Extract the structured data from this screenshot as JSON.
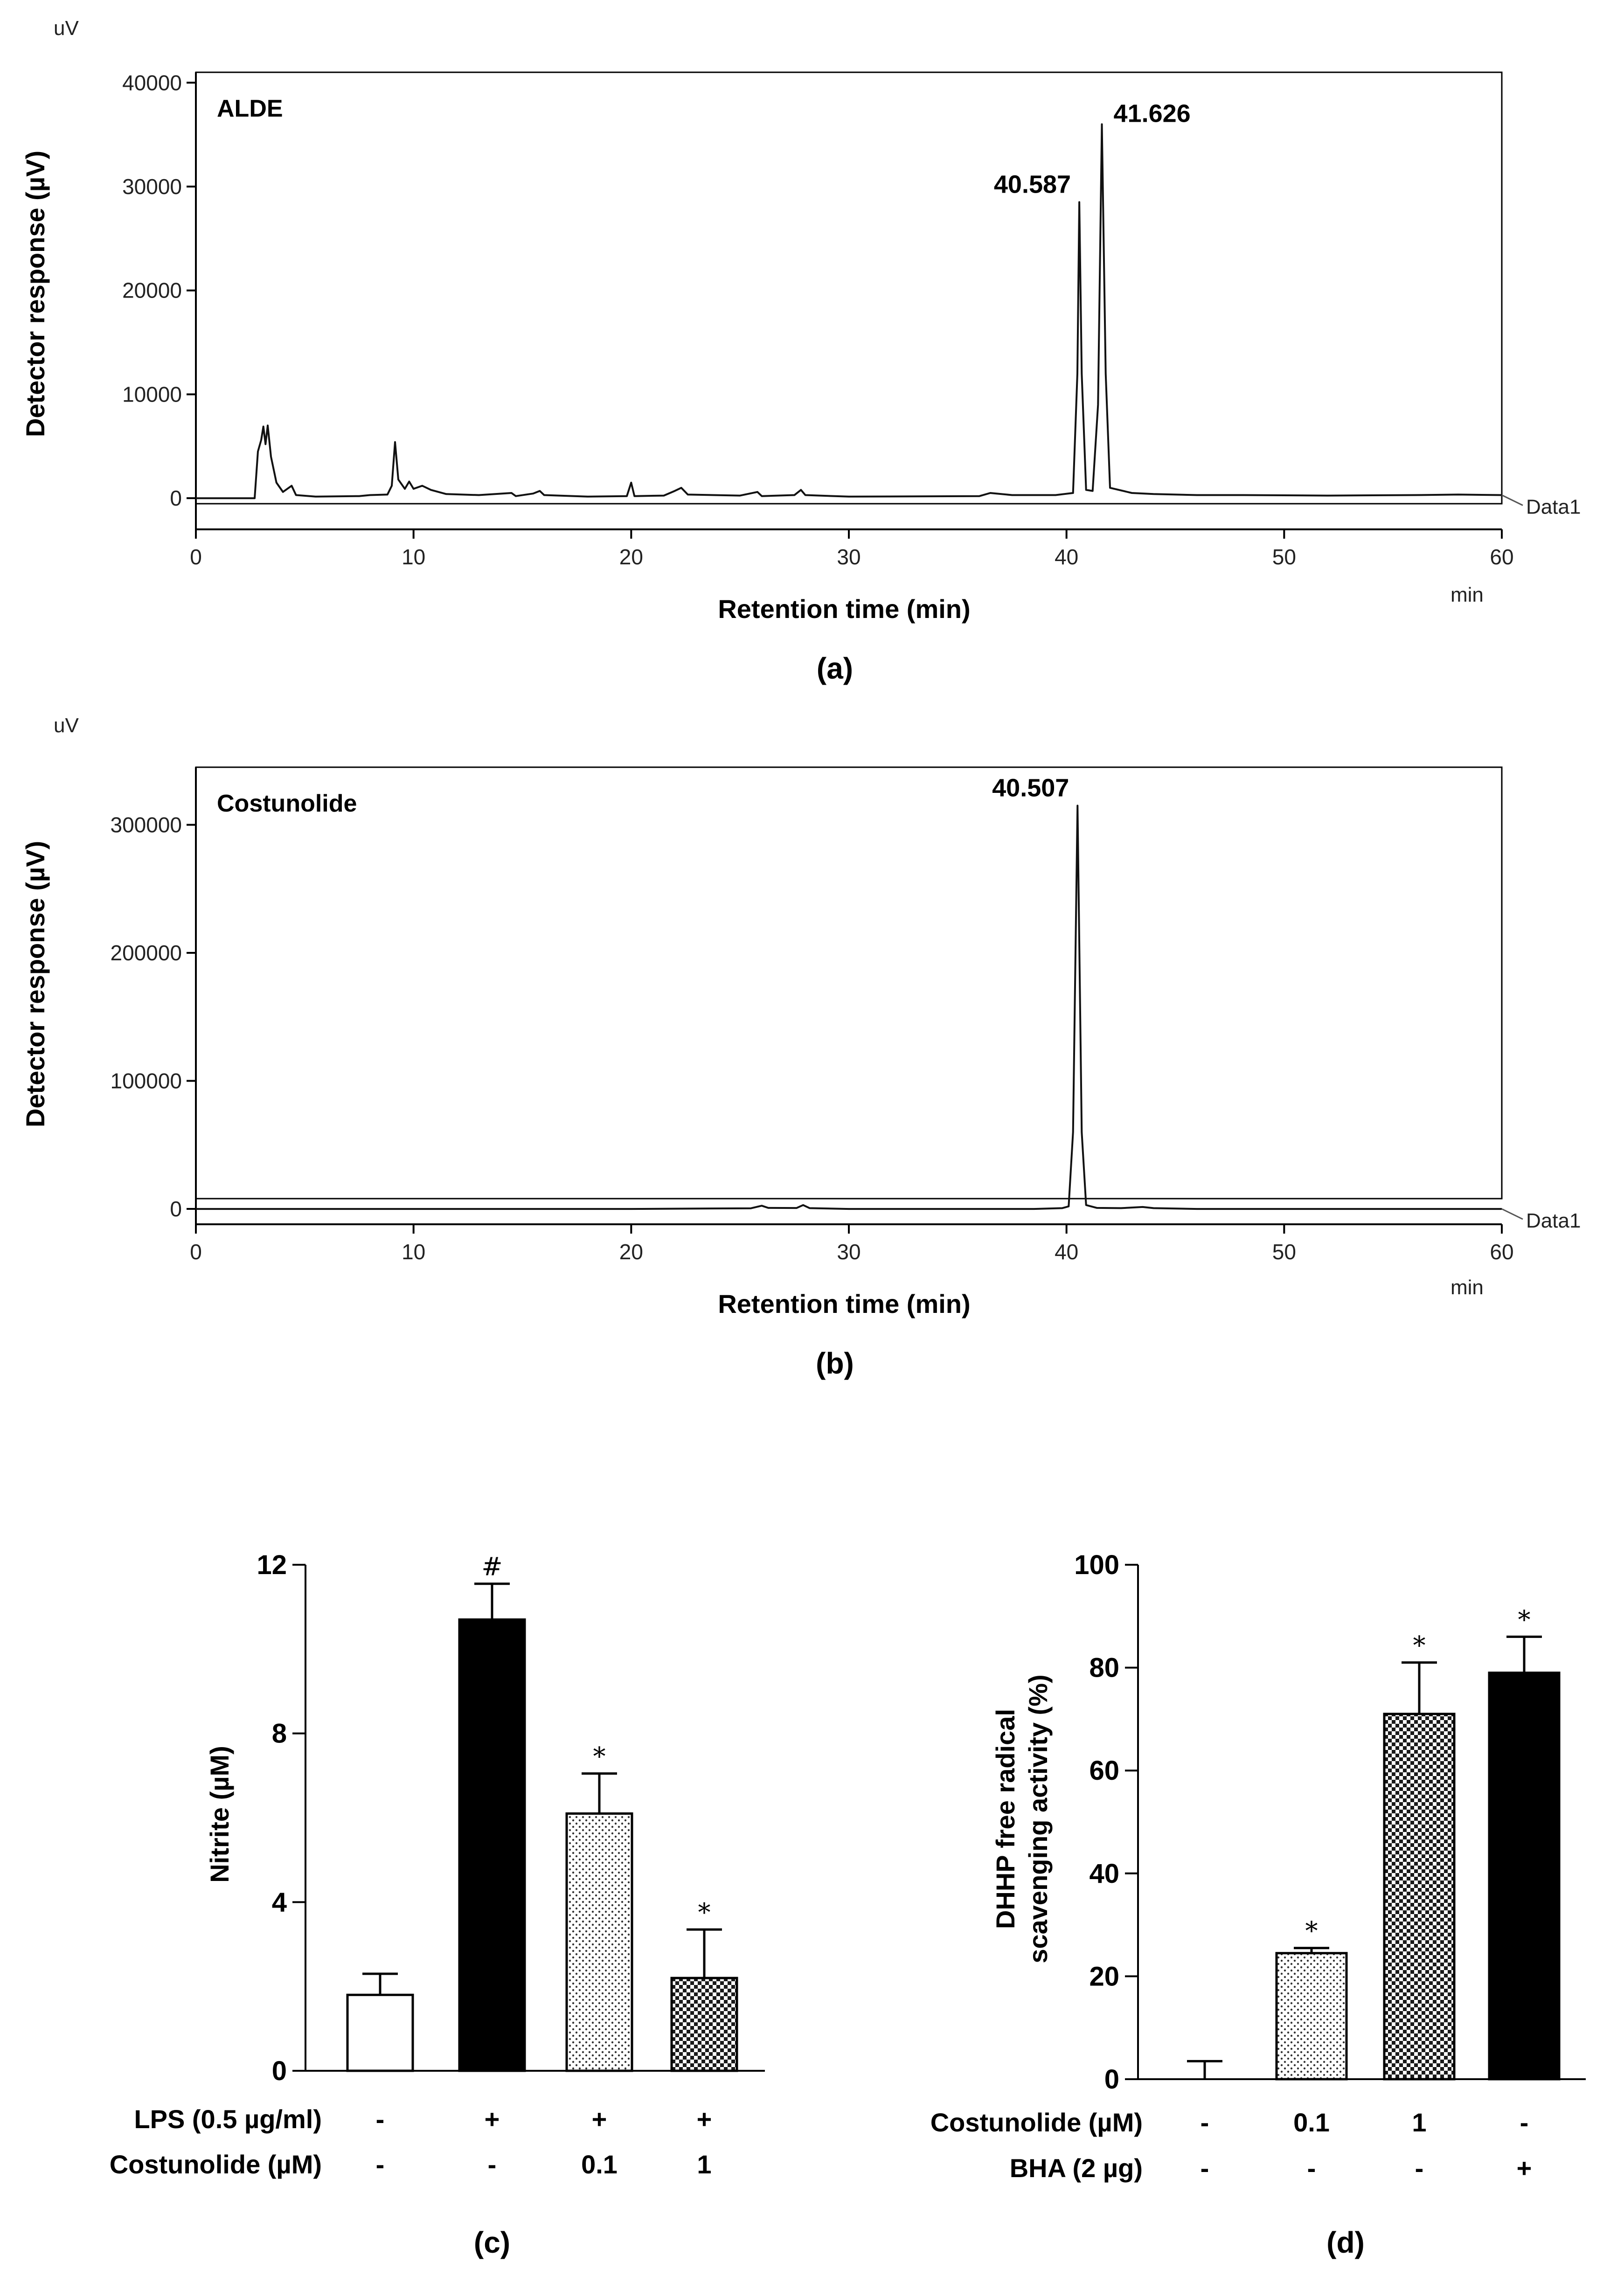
{
  "chart_data": [
    {
      "id": "a",
      "type": "line",
      "subtitle": "(a)",
      "unit_label": "uV",
      "name": "ALDE",
      "xlabel": "Retention time (min)",
      "ylabel": "Detector response (µV)",
      "x_unit": "min",
      "xlim": [
        0,
        60
      ],
      "ylim": [
        -3000,
        41000
      ],
      "xticks": [
        0,
        10,
        20,
        30,
        40,
        50,
        60
      ],
      "yticks": [
        0,
        10000,
        20000,
        30000,
        40000
      ],
      "series_label": "Data1",
      "peaks": [
        {
          "x": 40.587,
          "y": 28500,
          "label": "40.587"
        },
        {
          "x": 41.626,
          "y": 36000,
          "label": "41.626"
        }
      ],
      "trace": [
        [
          0,
          0
        ],
        [
          2.7,
          0
        ],
        [
          2.85,
          4500
        ],
        [
          3.0,
          5600
        ],
        [
          3.1,
          6900
        ],
        [
          3.2,
          5200
        ],
        [
          3.3,
          7000
        ],
        [
          3.45,
          4000
        ],
        [
          3.7,
          1500
        ],
        [
          4.0,
          600
        ],
        [
          4.4,
          1200
        ],
        [
          4.6,
          300
        ],
        [
          5.5,
          150
        ],
        [
          7.5,
          200
        ],
        [
          8.0,
          300
        ],
        [
          8.8,
          350
        ],
        [
          9.0,
          1200
        ],
        [
          9.15,
          5400
        ],
        [
          9.3,
          1800
        ],
        [
          9.6,
          900
        ],
        [
          9.8,
          1600
        ],
        [
          10.0,
          900
        ],
        [
          10.4,
          1200
        ],
        [
          10.8,
          800
        ],
        [
          11.5,
          400
        ],
        [
          13.0,
          300
        ],
        [
          14.5,
          500
        ],
        [
          14.7,
          200
        ],
        [
          15.5,
          450
        ],
        [
          15.8,
          700
        ],
        [
          16.0,
          300
        ],
        [
          18.0,
          150
        ],
        [
          19.8,
          200
        ],
        [
          20.0,
          1500
        ],
        [
          20.15,
          200
        ],
        [
          21.5,
          250
        ],
        [
          22.0,
          700
        ],
        [
          22.3,
          1000
        ],
        [
          22.6,
          350
        ],
        [
          25.0,
          250
        ],
        [
          25.8,
          600
        ],
        [
          26.0,
          200
        ],
        [
          27.5,
          300
        ],
        [
          27.8,
          800
        ],
        [
          28.0,
          300
        ],
        [
          30.0,
          150
        ],
        [
          36.0,
          200
        ],
        [
          36.5,
          500
        ],
        [
          37.5,
          300
        ],
        [
          39.5,
          300
        ],
        [
          40.3,
          500
        ],
        [
          40.5,
          12000
        ],
        [
          40.587,
          28500
        ],
        [
          40.7,
          12000
        ],
        [
          40.9,
          800
        ],
        [
          41.2,
          700
        ],
        [
          41.45,
          9000
        ],
        [
          41.626,
          36000
        ],
        [
          41.8,
          12000
        ],
        [
          42.0,
          1000
        ],
        [
          43.0,
          500
        ],
        [
          44.0,
          400
        ],
        [
          46.0,
          300
        ],
        [
          48.0,
          300
        ],
        [
          52.0,
          250
        ],
        [
          56.0,
          300
        ],
        [
          58.0,
          350
        ],
        [
          60.0,
          300
        ]
      ]
    },
    {
      "id": "b",
      "type": "line",
      "subtitle": "(b)",
      "unit_label": "uV",
      "name": "Costunolide",
      "xlabel": "Retention time (min)",
      "ylabel": "Detector response (µV)",
      "x_unit": "min",
      "xlim": [
        0,
        60
      ],
      "ylim": [
        -12000,
        345000
      ],
      "xticks": [
        0,
        10,
        20,
        30,
        40,
        50,
        60
      ],
      "yticks": [
        0,
        100000,
        200000,
        300000
      ],
      "series_label": "Data1",
      "peaks": [
        {
          "x": 40.507,
          "y": 315000,
          "label": "40.507"
        }
      ],
      "trace": [
        [
          0,
          0
        ],
        [
          10,
          0
        ],
        [
          20,
          0
        ],
        [
          25.5,
          500
        ],
        [
          26.0,
          2500
        ],
        [
          26.3,
          800
        ],
        [
          27.6,
          700
        ],
        [
          27.9,
          3000
        ],
        [
          28.2,
          600
        ],
        [
          30,
          0
        ],
        [
          38.5,
          0
        ],
        [
          39.8,
          600
        ],
        [
          40.1,
          2000
        ],
        [
          40.3,
          60000
        ],
        [
          40.507,
          315000
        ],
        [
          40.7,
          60000
        ],
        [
          40.9,
          3000
        ],
        [
          41.4,
          800
        ],
        [
          42.5,
          600
        ],
        [
          43.5,
          1500
        ],
        [
          44.0,
          600
        ],
        [
          46,
          0
        ],
        [
          60,
          0
        ]
      ]
    },
    {
      "id": "c",
      "type": "bar",
      "subtitle": "(c)",
      "ylabel": "Nitrite (µM)",
      "ylim": [
        0,
        12
      ],
      "yticks": [
        0,
        4,
        8,
        12
      ],
      "values": [
        1.8,
        10.7,
        6.1,
        2.2
      ],
      "errors": [
        0.5,
        0.85,
        0.95,
        1.15
      ],
      "marks": [
        "",
        "#",
        "*",
        "*"
      ],
      "fills": [
        "white",
        "black",
        "dots",
        "check"
      ],
      "group_rows": [
        {
          "label": "LPS (0.5 µg/ml)",
          "values": [
            "-",
            "+",
            "+",
            "+"
          ]
        },
        {
          "label": "Costunolide (µM)",
          "values": [
            "-",
            "-",
            "0.1",
            "1"
          ]
        }
      ]
    },
    {
      "id": "d",
      "type": "bar",
      "subtitle": "(d)",
      "ylabel_lines": [
        "DHHP  free radical",
        "scavenging activity (%)"
      ],
      "ylim": [
        0,
        100
      ],
      "yticks": [
        0,
        20,
        40,
        60,
        80,
        100
      ],
      "values": [
        0,
        24.5,
        71,
        79
      ],
      "errors": [
        3.5,
        1.0,
        10.0,
        7.0
      ],
      "marks": [
        "",
        "*",
        "*",
        "*"
      ],
      "fills": [
        "white",
        "dots",
        "check",
        "black"
      ],
      "group_rows": [
        {
          "label": "Costunolide (µM)",
          "values": [
            "-",
            "0.1",
            "1",
            "-"
          ]
        },
        {
          "label": "BHA (2 µg)",
          "values": [
            "-",
            "-",
            "-",
            "+"
          ]
        }
      ]
    }
  ]
}
